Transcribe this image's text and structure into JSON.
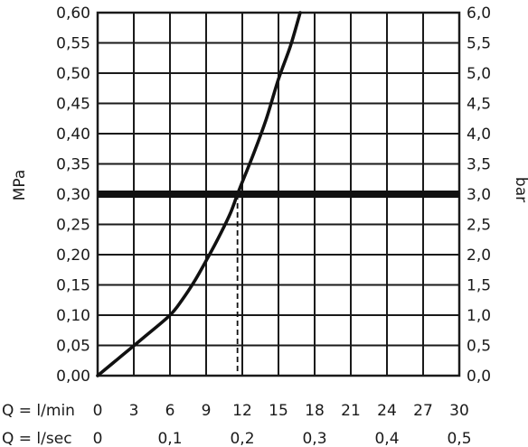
{
  "chart_data": {
    "type": "line",
    "ylabel_left": "MPa",
    "ylabel_right": "bar",
    "x_row_label_1": "Q = l/min",
    "x_row_label_2": "Q = l/sec",
    "xlim": [
      0,
      30
    ],
    "ylim": [
      0,
      0.6
    ],
    "y_ticks_left": [
      "0,00",
      "0,05",
      "0,10",
      "0,15",
      "0,20",
      "0,25",
      "0,30",
      "0,35",
      "0,40",
      "0,45",
      "0,50",
      "0,55",
      "0,60"
    ],
    "y_ticks_right": [
      "0,0",
      "0,5",
      "1,0",
      "1,5",
      "2,0",
      "2,5",
      "3,0",
      "3,5",
      "4,0",
      "4,5",
      "5,0",
      "5,5",
      "6,0"
    ],
    "x_ticks_lmin": [
      {
        "value": 0,
        "label": "0"
      },
      {
        "value": 3,
        "label": "3"
      },
      {
        "value": 6,
        "label": "6"
      },
      {
        "value": 9,
        "label": "9"
      },
      {
        "value": 12,
        "label": "12"
      },
      {
        "value": 15,
        "label": "15"
      },
      {
        "value": 18,
        "label": "18"
      },
      {
        "value": 21,
        "label": "21"
      },
      {
        "value": 24,
        "label": "24"
      },
      {
        "value": 27,
        "label": "27"
      },
      {
        "value": 30,
        "label": "30"
      }
    ],
    "x_ticks_lsec": [
      {
        "value": 0,
        "label": "0"
      },
      {
        "value": 6,
        "label": "0,1"
      },
      {
        "value": 12,
        "label": "0,2"
      },
      {
        "value": 18,
        "label": "0,3"
      },
      {
        "value": 24,
        "label": "0,4"
      },
      {
        "value": 30,
        "label": "0,5"
      }
    ],
    "grid": true,
    "series": [
      {
        "x": [
          0,
          2,
          4,
          6,
          7,
          8,
          9,
          10,
          11,
          11.6,
          12,
          13,
          14,
          15,
          16,
          16.8
        ],
        "y": [
          0,
          0.033,
          0.066,
          0.1,
          0.125,
          0.155,
          0.19,
          0.227,
          0.268,
          0.3,
          0.32,
          0.37,
          0.425,
          0.49,
          0.545,
          0.6
        ]
      }
    ],
    "reference_line": {
      "y": 0.3
    },
    "reference_drop": {
      "x": 11.6,
      "y": 0.3
    }
  }
}
